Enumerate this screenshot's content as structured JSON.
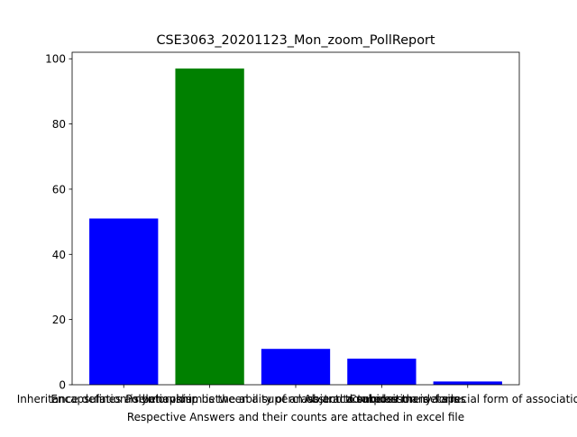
{
  "chart_data": {
    "type": "bar",
    "title": "CSE3063_20201123_Mon_zoom_PollReport",
    "xlabel": "Respective Answers and their counts are attached in excel file",
    "ylabel": "",
    "categories": [
      "Encapsulation is behaviour",
      "Inheritance defines a relationship between a superclass and a subclass",
      "Polymorphism is the ability of an object to take on many forms",
      "Abstraction hides the details",
      "Composition is a special form of association"
    ],
    "values": [
      51,
      97,
      11,
      8,
      1
    ],
    "colors": [
      "#0000ff",
      "#008000",
      "#0000ff",
      "#0000ff",
      "#0000ff"
    ],
    "ylim": [
      0,
      102
    ],
    "yticks": [
      0,
      20,
      40,
      60,
      80,
      100
    ],
    "grid": false
  }
}
